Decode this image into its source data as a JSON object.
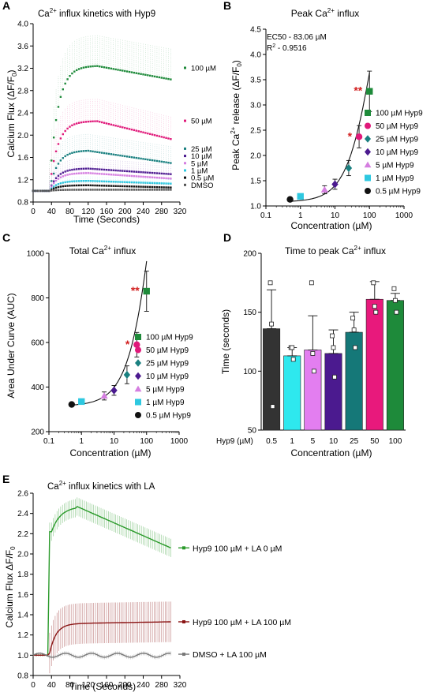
{
  "panels": {
    "A": {
      "letter": "A",
      "title_main": "Ca",
      "title_sup": "2+",
      "title_rest": " influx kinetics with Hyp9",
      "xlabel": "Time (Seconds)",
      "ylabel_main": "Calcium Flux (ΔF/F",
      "ylabel_sub": "0",
      "ylabel_end": ")"
    },
    "B": {
      "letter": "B",
      "title_main": "Peak Ca",
      "title_sup": "2+",
      "title_rest": " influx",
      "xlabel": "Concentration (µM)",
      "ylabel_a": "Peak Ca",
      "ylabel_sup": "2+",
      "ylabel_b": " release (ΔF/F",
      "ylabel_sub": "0",
      "ylabel_c": ")",
      "ec50": "EC50 - 83.06 µM",
      "r2_main": "R",
      "r2_sup": "2",
      "r2_rest": " - 0.9516"
    },
    "C": {
      "letter": "C",
      "title_main": "Total Ca",
      "title_sup": "2+",
      "title_rest": " influx",
      "xlabel": "Concentration (µM)",
      "ylabel": "Area Under Curve (AUC)"
    },
    "D": {
      "letter": "D",
      "title_main": "Time to peak Ca",
      "title_sup": "2+",
      "title_rest": " influx",
      "xlabel": "Concentration (µM)",
      "ylabel": "Time (seconds)",
      "row_label": "Hyp9 (µM)"
    },
    "E": {
      "letter": "E",
      "title_main": "Ca",
      "title_sup": "2+",
      "title_rest": " influx kinetics with LA",
      "xlabel": "Time (Seconds)",
      "ylabel_main": "Calcium Flux ΔF/F",
      "ylabel_sub": "0"
    }
  },
  "chart_data": [
    {
      "panel": "A",
      "type": "line",
      "x_range": [
        0,
        300
      ],
      "xlim": [
        0,
        320
      ],
      "ylim": [
        0.8,
        4.0
      ],
      "xticks": [
        0,
        40,
        80,
        120,
        160,
        200,
        240,
        280,
        320
      ],
      "yticks": [
        0.8,
        1.2,
        1.6,
        2.0,
        2.4,
        2.8,
        3.2,
        3.6,
        4.0
      ],
      "series": [
        {
          "name": "100 µM",
          "color": "#1e8a3a",
          "peak": 3.24,
          "end": 3.0,
          "error": 0.55
        },
        {
          "name": "50 µM",
          "color": "#e0197a",
          "peak": 2.25,
          "end": 1.93,
          "error": 0.4
        },
        {
          "name": "25 µM",
          "color": "#1a8080",
          "peak": 1.72,
          "end": 1.5,
          "error": 0.3
        },
        {
          "name": "10 µM",
          "color": "#4b1a8f",
          "peak": 1.4,
          "end": 1.3,
          "error": 0.18
        },
        {
          "name": "5 µM",
          "color": "#d57ee0",
          "peak": 1.32,
          "end": 1.22,
          "error": 0.14
        },
        {
          "name": "1 µM",
          "color": "#2ec8e0",
          "peak": 1.18,
          "end": 1.13,
          "error": 0.08
        },
        {
          "name": "0.5 µM",
          "color": "#111111",
          "peak": 1.1,
          "end": 1.06,
          "error": 0.06
        },
        {
          "name": "DMSO",
          "color": "#555555",
          "peak": 1.02,
          "end": 1.02,
          "error": 0.03
        }
      ]
    },
    {
      "panel": "B",
      "type": "scatter",
      "x_scale": "log",
      "xlim": [
        0.1,
        1000
      ],
      "ylim": [
        1.0,
        4.5
      ],
      "xticks": [
        "0.1",
        "1",
        "10",
        "100",
        "1000"
      ],
      "yticks": [
        1.0,
        1.5,
        2.0,
        2.5,
        3.0,
        3.5,
        4.0,
        4.5
      ],
      "points": [
        {
          "name": "100 µM Hyp9",
          "x": 100,
          "y": 3.27,
          "err": 0.4,
          "shape": "square",
          "color": "#1e8a3a"
        },
        {
          "name": "50 µM Hyp9",
          "x": 50,
          "y": 2.37,
          "err": 0.22,
          "shape": "circle",
          "color": "#e0197a"
        },
        {
          "name": "25 µM Hyp9",
          "x": 25,
          "y": 1.75,
          "err": 0.15,
          "shape": "diamond",
          "color": "#1a8080"
        },
        {
          "name": "10 µM Hyp9",
          "x": 10,
          "y": 1.43,
          "err": 0.1,
          "shape": "diamond",
          "color": "#4b1a8f"
        },
        {
          "name": "5 µM Hyp9",
          "x": 5,
          "y": 1.32,
          "err": 0.08,
          "shape": "triangle",
          "color": "#d57ee0"
        },
        {
          "name": "1 µM Hyp9",
          "x": 1,
          "y": 1.19,
          "err": 0.05,
          "shape": "square",
          "color": "#2ec8e0"
        },
        {
          "name": "0.5 µM Hyp9",
          "x": 0.5,
          "y": 1.13,
          "err": 0.03,
          "shape": "circle",
          "color": "#111111"
        }
      ],
      "annotations": [
        {
          "text": "**",
          "x": 100,
          "y": 3.27
        },
        {
          "text": "*",
          "x": 50,
          "y": 2.37
        }
      ]
    },
    {
      "panel": "C",
      "type": "scatter",
      "x_scale": "log",
      "xlim": [
        0.1,
        1000
      ],
      "ylim": [
        200,
        1000
      ],
      "xticks": [
        "0.1",
        "1",
        "10",
        "100",
        "1000"
      ],
      "yticks": [
        200,
        400,
        600,
        800,
        1000
      ],
      "points": [
        {
          "name": "100 µM Hyp9",
          "x": 100,
          "y": 830,
          "err": 90,
          "shape": "square",
          "color": "#1e8a3a"
        },
        {
          "name": "50 µM Hyp9",
          "x": 50,
          "y": 590,
          "err": 55,
          "shape": "circle",
          "color": "#e0197a"
        },
        {
          "name": "25 µM Hyp9",
          "x": 25,
          "y": 455,
          "err": 40,
          "shape": "diamond",
          "color": "#1a8080"
        },
        {
          "name": "10 µM Hyp9",
          "x": 10,
          "y": 385,
          "err": 22,
          "shape": "diamond",
          "color": "#4b1a8f"
        },
        {
          "name": "5 µM Hyp9",
          "x": 5,
          "y": 360,
          "err": 18,
          "shape": "triangle",
          "color": "#d57ee0"
        },
        {
          "name": "1 µM Hyp9",
          "x": 1,
          "y": 335,
          "err": 8,
          "shape": "square",
          "color": "#2ec8e0"
        },
        {
          "name": "0.5 µM Hyp9",
          "x": 0.5,
          "y": 322,
          "err": 5,
          "shape": "circle",
          "color": "#111111"
        }
      ],
      "annotations": [
        {
          "text": "**",
          "x": 100,
          "y": 830
        },
        {
          "text": "*",
          "x": 50,
          "y": 590
        }
      ]
    },
    {
      "panel": "D",
      "type": "bar",
      "categories": [
        "0.5",
        "1",
        "5",
        "10",
        "25",
        "50",
        "100"
      ],
      "values": [
        136,
        113,
        118,
        115,
        133,
        161,
        160
      ],
      "errors": [
        33,
        7,
        29,
        20,
        17,
        15,
        6
      ],
      "colors": [
        "#333333",
        "#2ee8ee",
        "#e37ef0",
        "#4b1a8f",
        "#157878",
        "#e8197c",
        "#1e8a3a"
      ],
      "points": [
        [
          175,
          140,
          70
        ],
        [
          120,
          120,
          110
        ],
        [
          175,
          115,
          100
        ],
        [
          130,
          120,
          95
        ],
        [
          145,
          135,
          120
        ],
        [
          175,
          155,
          150
        ],
        [
          170,
          160,
          150
        ]
      ],
      "ylim": [
        50,
        200
      ],
      "yticks": [
        50,
        100,
        150,
        200
      ]
    },
    {
      "panel": "E",
      "type": "line",
      "x_range": [
        0,
        300
      ],
      "xlim": [
        0,
        320
      ],
      "ylim": [
        0.8,
        2.6
      ],
      "xticks": [
        0,
        40,
        80,
        120,
        160,
        200,
        240,
        280,
        320
      ],
      "yticks": [
        0.8,
        1.0,
        1.2,
        1.4,
        1.6,
        1.8,
        2.0,
        2.2,
        2.4,
        2.6
      ],
      "series": [
        {
          "name": "Hyp9 100 µM + LA 0 µM",
          "color": "#2a9a2a",
          "peak": 2.47,
          "end": 2.06,
          "error": 0.09
        },
        {
          "name": "Hyp9 100 µM + LA 100 µM",
          "color": "#8a1414",
          "peak": 1.3,
          "end": 1.33,
          "error": 0.2
        },
        {
          "name": "DMSO + LA 100 µM",
          "color": "#777777",
          "peak": 1.02,
          "end": 1.01,
          "error": 0.02
        }
      ]
    }
  ]
}
